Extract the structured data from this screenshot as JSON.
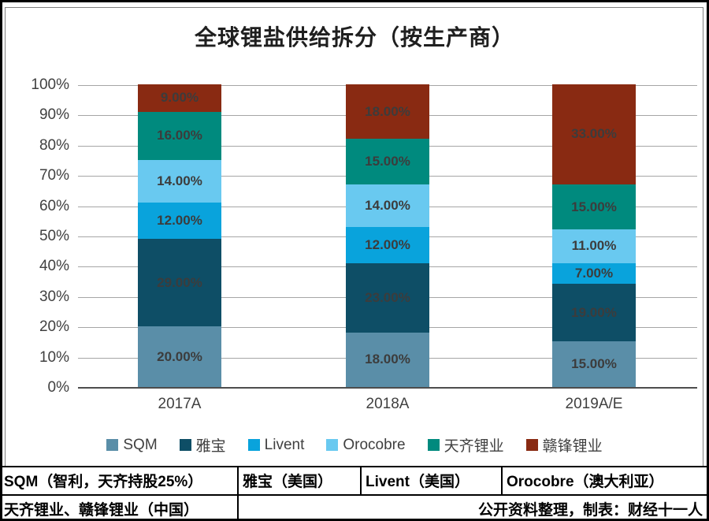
{
  "chart_data": {
    "type": "bar",
    "variant": "stacked-100",
    "title": "全球锂盐供给拆分（按生产商）",
    "categories": [
      "2017A",
      "2018A",
      "2019A/E"
    ],
    "series": [
      {
        "name": "SQM",
        "color": "#5a8ea8",
        "values": [
          20,
          18,
          15
        ]
      },
      {
        "name": "雅宝",
        "color": "#0e4e66",
        "values": [
          29,
          23,
          19
        ]
      },
      {
        "name": "Livent",
        "color": "#09a3dc",
        "values": [
          12,
          12,
          7
        ]
      },
      {
        "name": "Orocobre",
        "color": "#69c9f0",
        "values": [
          14,
          14,
          11
        ]
      },
      {
        "name": "天齐锂业",
        "color": "#008a7e",
        "values": [
          16,
          15,
          15
        ]
      },
      {
        "name": "赣锋锂业",
        "color": "#892a12",
        "values": [
          9,
          18,
          33
        ]
      }
    ],
    "value_label_suffix": "%",
    "value_label_decimals": 2,
    "yticks": [
      0,
      10,
      20,
      30,
      40,
      50,
      60,
      70,
      80,
      90,
      100
    ],
    "ylim": [
      0,
      100
    ],
    "grid": "horizontal",
    "legend_position": "bottom"
  },
  "footer_table": {
    "row1": [
      "SQM（智利，天齐持股25%）",
      "雅宝（美国）",
      "Livent（美国）",
      "Orocobre（澳大利亚）"
    ],
    "row2_left": "天齐锂业、赣锋锂业（中国）",
    "row2_right": "公开资料整理，制表：财经十一人"
  },
  "colors": {
    "gridline": "#a6a6a6",
    "baseline": "#4d4d4d",
    "axis_text": "#404040",
    "segment_label": "#3c3c3c",
    "frame": "#7f7f7f",
    "border": "#000000"
  }
}
